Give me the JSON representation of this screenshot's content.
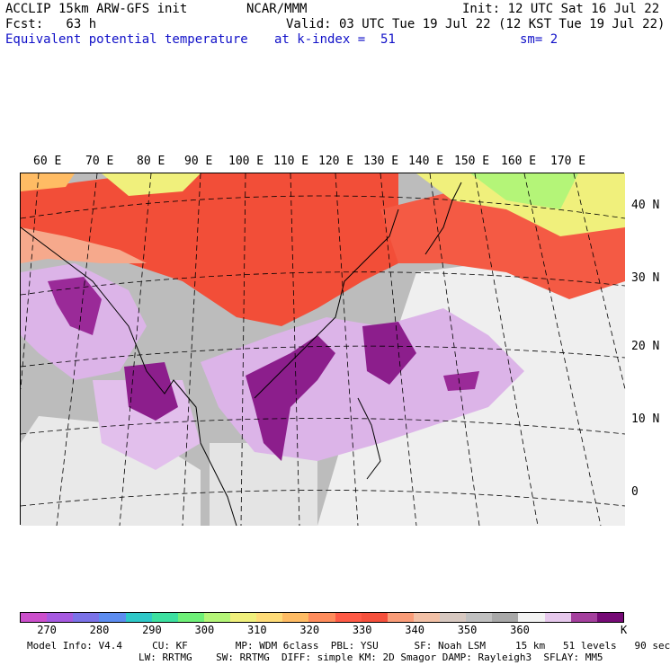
{
  "header": {
    "line1_left": "ACCLIP 15km ARW-GFS init",
    "line1_mid": "NCAR/MMM",
    "line1_right": "Init: 12 UTC Sat 16 Jul 22",
    "line2_left": "Fcst:   63 h",
    "line2_right": "Valid: 03 UTC Tue 19 Jul 22 (12 KST Tue 19 Jul 22)",
    "line3_left": "Equivalent potential temperature",
    "line3_mid": "at k-index =  51",
    "line3_right": "sm= 2"
  },
  "map": {
    "longitude_labels": [
      "60 E",
      "70 E",
      "80 E",
      "90 E",
      "100 E",
      "110 E",
      "120 E",
      "130 E",
      "140 E",
      "150 E",
      "160 E",
      "170 E"
    ],
    "latitude_labels": [
      "40 N",
      "30 N",
      "20 N",
      "10 N",
      "0"
    ],
    "colors": {
      "land_gray": "#a8a8a8",
      "ocean_light": "#f0f0f0",
      "warm_red": "#f0503c",
      "purple_light": "#dcb4e8",
      "purple_dark": "#8c1e8c"
    }
  },
  "colorbar": {
    "colors": [
      "#cc4fcc",
      "#a659e0",
      "#7b72e8",
      "#5c8cf0",
      "#2ec8c8",
      "#3ce0a0",
      "#6ef078",
      "#b4f578",
      "#f0f07c",
      "#ffdc78",
      "#ffbc64",
      "#ff8c5c",
      "#ff5a46",
      "#f5503c",
      "#fa9c78",
      "#f2c0a6",
      "#d7c8c0",
      "#c0c0c0",
      "#a8a8a8",
      "#f2f2f2",
      "#e6c8ec",
      "#a5409e",
      "#760a76"
    ],
    "tick_labels": [
      "270",
      "280",
      "290",
      "300",
      "310",
      "320",
      "330",
      "340",
      "350",
      "360"
    ],
    "units": "K"
  },
  "model_info": {
    "line1": "Model Info: V4.4     CU: KF        MP: WDM 6class  PBL: YSU      SF: Noah LSM     15 km   51 levels   90 sec",
    "line2": "LW: RRTMG    SW: RRTMG  DIFF: simple KM: 2D Smagor DAMP: Rayleigh3  SFLAY: MM5"
  }
}
